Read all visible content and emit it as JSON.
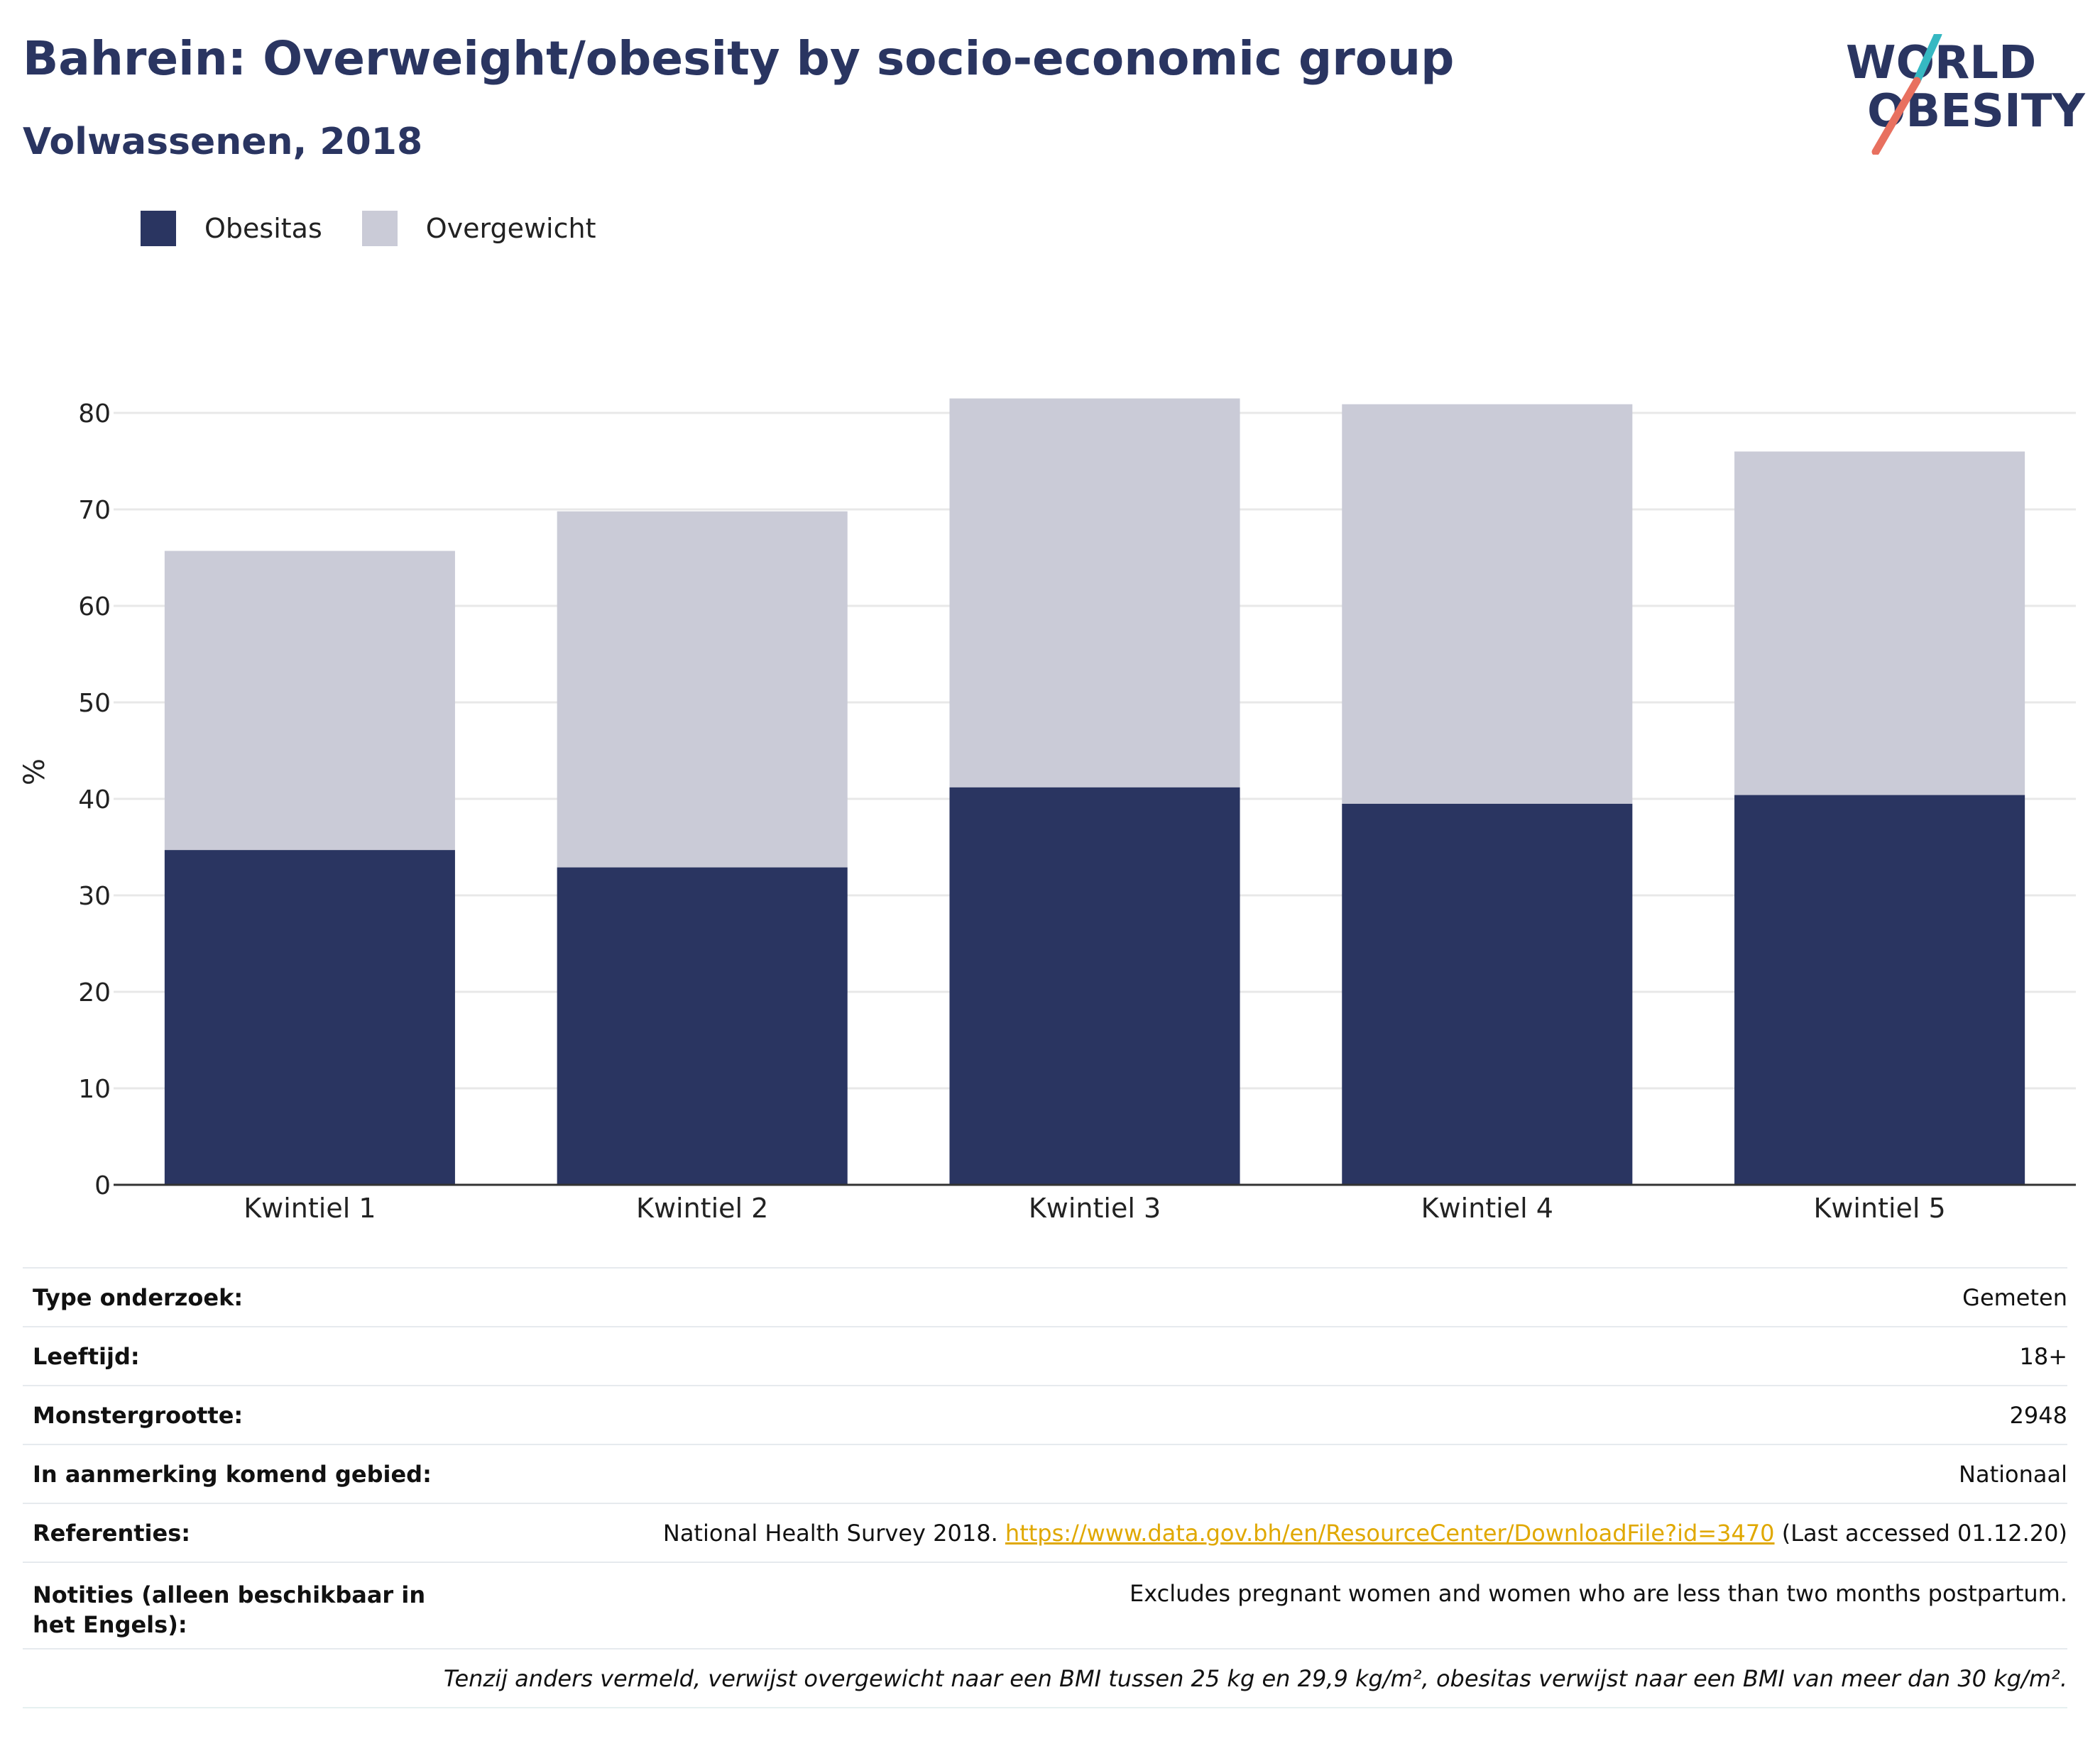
{
  "header": {
    "title": "Bahrein: Overweight/obesity by socio-economic group",
    "subtitle": "Volwassenen, 2018"
  },
  "logo": {
    "line1": "WORLD",
    "line2": "OBESITY"
  },
  "colors": {
    "obesity": "#2a3561",
    "overweight": "#cacbd7",
    "accent_teal": "#36b8c2",
    "accent_coral": "#e8705f",
    "link": "#e0a800"
  },
  "chart_data": {
    "type": "bar",
    "stacked": true,
    "categories": [
      "Kwintiel 1",
      "Kwintiel 2",
      "Kwintiel 3",
      "Kwintiel 4",
      "Kwintiel 5"
    ],
    "series": [
      {
        "name": "Obesitas",
        "values": [
          34.7,
          32.9,
          41.2,
          39.5,
          40.4
        ]
      },
      {
        "name": "Overgewicht",
        "values": [
          31.0,
          36.9,
          40.3,
          41.4,
          35.6
        ]
      }
    ],
    "ylabel": "%",
    "ylim": [
      0,
      80
    ],
    "yticks": [
      0,
      10,
      20,
      30,
      40,
      50,
      60,
      70,
      80
    ],
    "grid": true,
    "legend_position": "top-left"
  },
  "metadata": {
    "rows": [
      {
        "label": "Type onderzoek:",
        "value": "Gemeten"
      },
      {
        "label": "Leeftijd:",
        "value": "18+"
      },
      {
        "label": "Monstergrootte:",
        "value": "2948"
      },
      {
        "label": "In aanmerking komend gebied:",
        "value": "Nationaal"
      }
    ],
    "references": {
      "label": "Referenties:",
      "text": "National Health Survey 2018.",
      "link": "https://www.data.gov.bh/en/ResourceCenter/DownloadFile?id=3470",
      "suffix": "(Last accessed 01.12.20)"
    },
    "notes": {
      "label": "Notities (alleen beschikbaar in het Engels):",
      "value": "Excludes pregnant women and women who are less than two months postpartum."
    },
    "footnote": "Tenzij anders vermeld, verwijst overgewicht naar een BMI tussen 25 kg en 29,9 kg/m², obesitas verwijst naar een BMI van meer dan 30 kg/m²."
  }
}
